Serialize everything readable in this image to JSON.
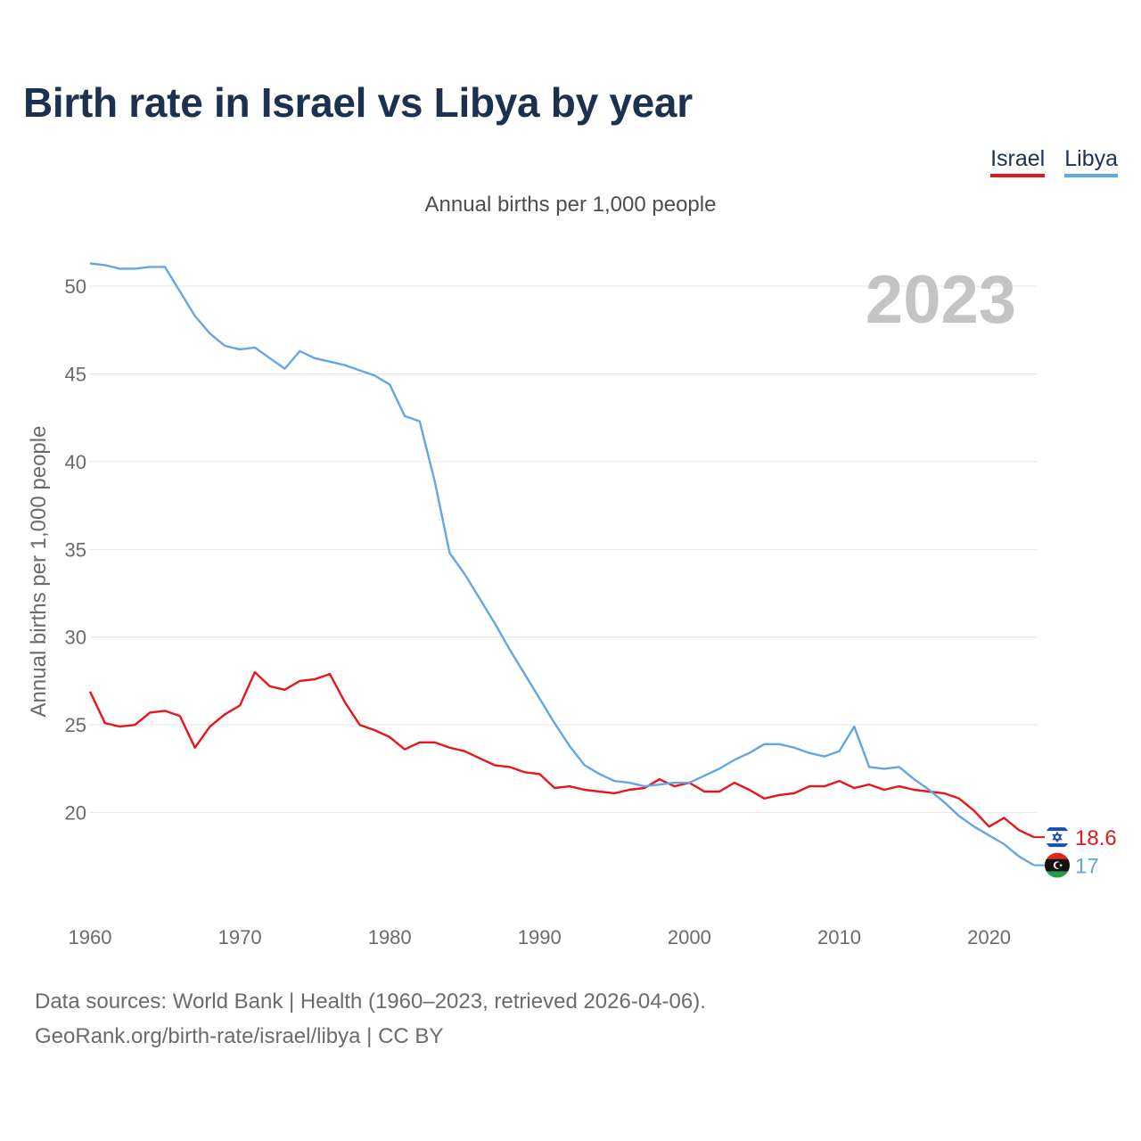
{
  "title": "Birth rate in Israel vs Libya by year",
  "subtitle": "Annual births per 1,000 people",
  "legend": {
    "israel": "Israel",
    "libya": "Libya"
  },
  "footer": {
    "line1": "Data sources: World Bank | Health (1960–2023, retrieved 2026-04-06).",
    "line2": "GeoRank.org/birth-rate/israel/libya | CC BY"
  },
  "colors": {
    "israel": "#e8151b",
    "libya": "#63a6e6",
    "grid": "#e6e6e6",
    "text": "#6b6b6b"
  },
  "chart_data": {
    "type": "line",
    "title": "Birth rate in Israel vs Libya by year",
    "ylabel": "Annual births per 1,000 people",
    "xlabel": "",
    "year_highlight": "2023",
    "xlim": [
      1960,
      2023
    ],
    "ylim": [
      15,
      53
    ],
    "xticks": [
      1960,
      1970,
      1980,
      1990,
      2000,
      2010,
      2020
    ],
    "yticks": [
      20,
      25,
      30,
      35,
      40,
      45,
      50
    ],
    "x": [
      1960,
      1961,
      1962,
      1963,
      1964,
      1965,
      1966,
      1967,
      1968,
      1969,
      1970,
      1971,
      1972,
      1973,
      1974,
      1975,
      1976,
      1977,
      1978,
      1979,
      1980,
      1981,
      1982,
      1983,
      1984,
      1985,
      1986,
      1987,
      1988,
      1989,
      1990,
      1991,
      1992,
      1993,
      1994,
      1995,
      1996,
      1997,
      1998,
      1999,
      2000,
      2001,
      2002,
      2003,
      2004,
      2005,
      2006,
      2007,
      2008,
      2009,
      2010,
      2011,
      2012,
      2013,
      2014,
      2015,
      2016,
      2017,
      2018,
      2019,
      2020,
      2021,
      2022,
      2023
    ],
    "series": [
      {
        "name": "Israel",
        "color": "#e8151b",
        "end_label": "18.6",
        "values": [
          26.9,
          25.1,
          24.9,
          25.0,
          25.7,
          25.8,
          25.5,
          23.7,
          24.9,
          25.6,
          26.1,
          28.0,
          27.2,
          27.0,
          27.5,
          27.6,
          27.9,
          26.3,
          25.0,
          24.7,
          24.3,
          23.6,
          24.0,
          24.0,
          23.7,
          23.5,
          23.1,
          22.7,
          22.6,
          22.3,
          22.2,
          21.4,
          21.5,
          21.3,
          21.2,
          21.1,
          21.3,
          21.4,
          21.9,
          21.5,
          21.7,
          21.2,
          21.2,
          21.7,
          21.3,
          20.8,
          21.0,
          21.1,
          21.5,
          21.5,
          21.8,
          21.4,
          21.6,
          21.3,
          21.5,
          21.3,
          21.2,
          21.1,
          20.8,
          20.1,
          19.2,
          19.7,
          19.0,
          18.6
        ]
      },
      {
        "name": "Libya",
        "color": "#63a6e6",
        "end_label": "17",
        "values": [
          51.3,
          51.2,
          51.0,
          51.0,
          51.1,
          51.1,
          49.7,
          48.3,
          47.3,
          46.6,
          46.4,
          46.5,
          45.9,
          45.3,
          46.3,
          45.9,
          45.7,
          45.5,
          45.2,
          44.9,
          44.4,
          42.6,
          42.3,
          38.9,
          34.8,
          33.6,
          32.2,
          30.8,
          29.3,
          27.9,
          26.5,
          25.1,
          23.8,
          22.7,
          22.2,
          21.8,
          21.7,
          21.5,
          21.6,
          21.7,
          21.7,
          22.1,
          22.5,
          23.0,
          23.4,
          23.9,
          23.9,
          23.7,
          23.4,
          23.2,
          23.5,
          24.9,
          22.6,
          22.5,
          22.6,
          21.9,
          21.3,
          20.6,
          19.8,
          19.2,
          18.7,
          18.2,
          17.5,
          17.0
        ]
      }
    ]
  }
}
